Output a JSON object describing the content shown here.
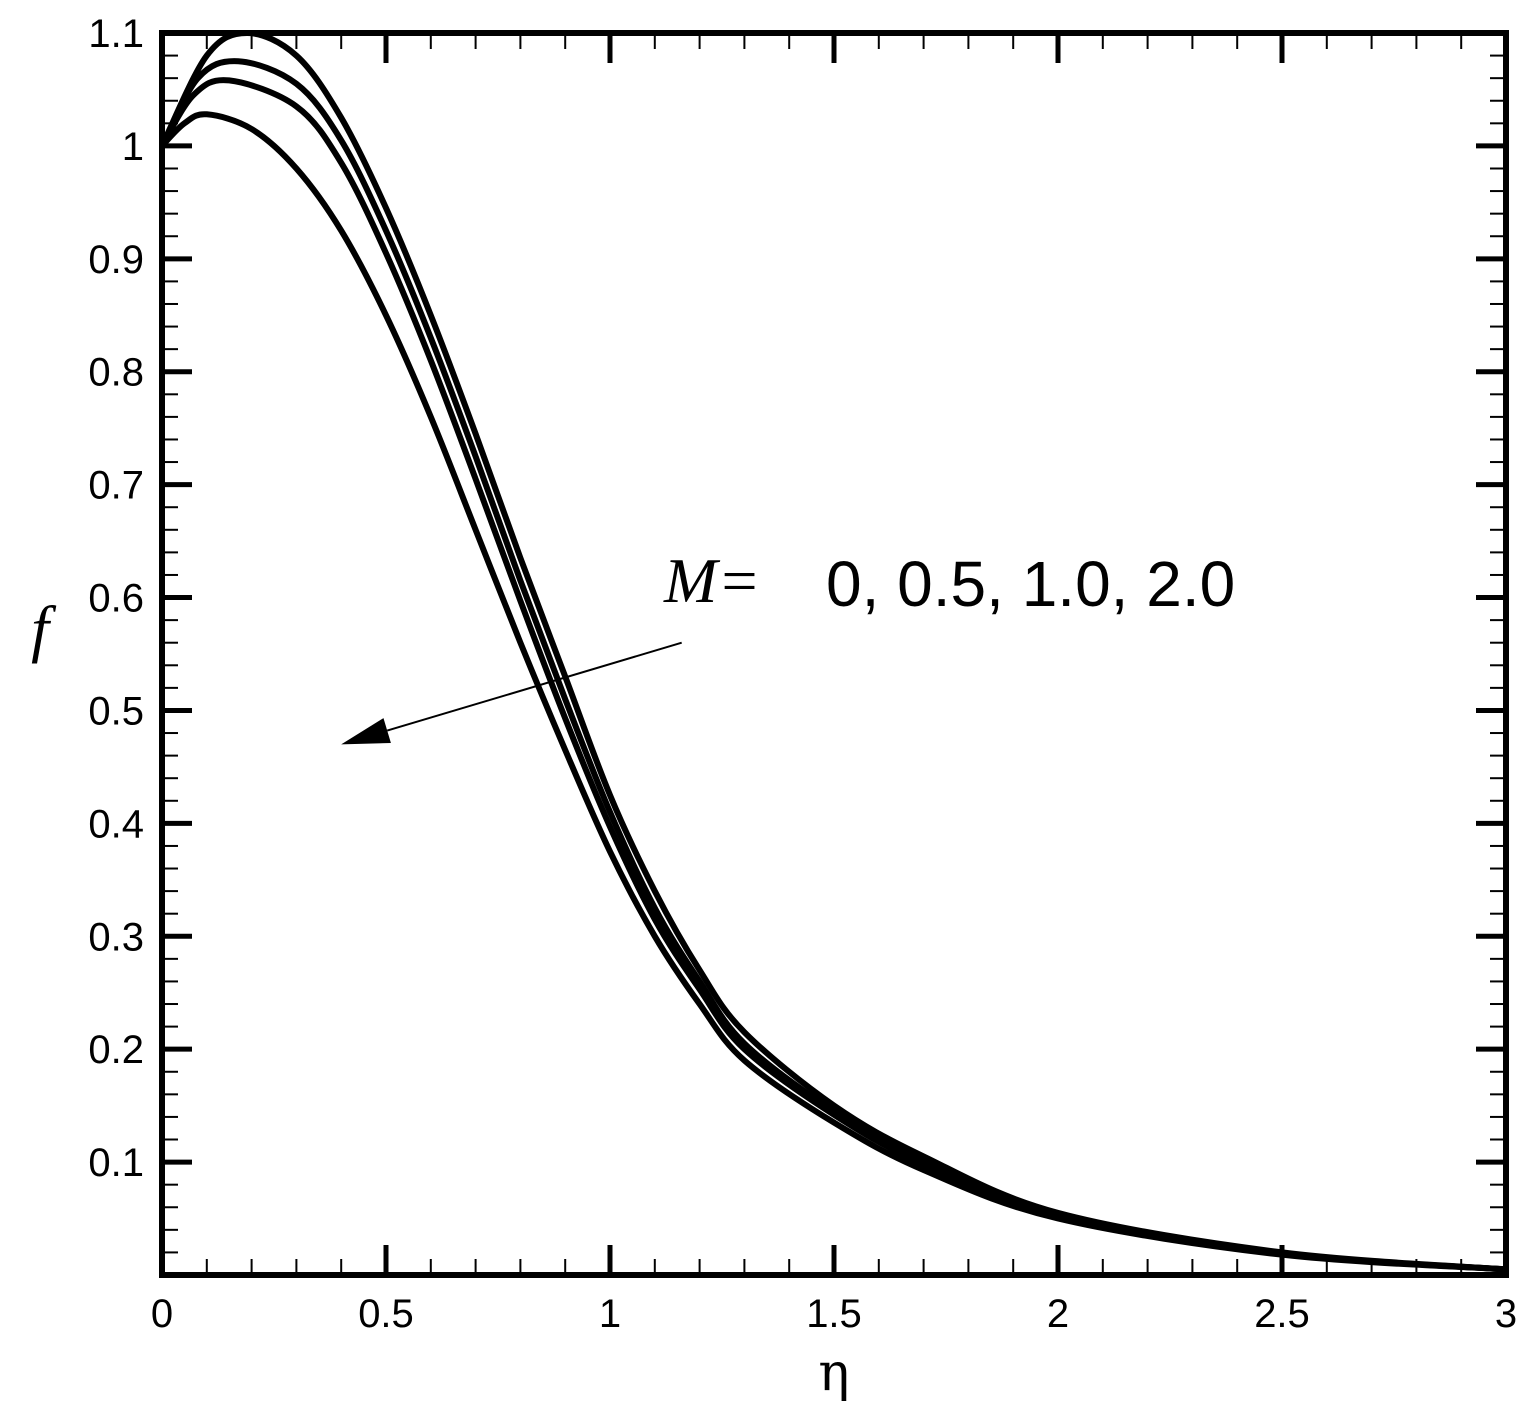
{
  "chart_data": {
    "type": "line",
    "title": "",
    "xlabel": "η",
    "ylabel": "f",
    "xlim": [
      0,
      3
    ],
    "ylim": [
      0,
      1.1
    ],
    "grid": false,
    "x_ticks": [
      {
        "value": 0,
        "label": "0"
      },
      {
        "value": 0.5,
        "label": "0.5"
      },
      {
        "value": 1,
        "label": "1"
      },
      {
        "value": 1.5,
        "label": "1.5"
      },
      {
        "value": 2,
        "label": "2"
      },
      {
        "value": 2.5,
        "label": "2.5"
      },
      {
        "value": 3,
        "label": "3"
      }
    ],
    "y_ticks": [
      {
        "value": 0.1,
        "label": "0.1"
      },
      {
        "value": 0.2,
        "label": "0.2"
      },
      {
        "value": 0.3,
        "label": "0.3"
      },
      {
        "value": 0.4,
        "label": "0.4"
      },
      {
        "value": 0.5,
        "label": "0.5"
      },
      {
        "value": 0.6,
        "label": "0.6"
      },
      {
        "value": 0.7,
        "label": "0.7"
      },
      {
        "value": 0.8,
        "label": "0.8"
      },
      {
        "value": 0.9,
        "label": "0.9"
      },
      {
        "value": 1,
        "label": "1"
      },
      {
        "value": 1.1,
        "label": "1.1"
      }
    ],
    "series": [
      {
        "values": [
          [
            0,
            1.0
          ],
          [
            0.1,
            1.08
          ],
          [
            0.19,
            1.1
          ],
          [
            0.3,
            1.08
          ],
          [
            0.4,
            1.025
          ],
          [
            0.5,
            0.945
          ],
          [
            0.6,
            0.85
          ],
          [
            0.7,
            0.745
          ],
          [
            0.8,
            0.635
          ],
          [
            0.9,
            0.53
          ],
          [
            1.0,
            0.425
          ],
          [
            1.1,
            0.34
          ],
          [
            1.2,
            0.27
          ],
          [
            1.3,
            0.215
          ],
          [
            1.5,
            0.15
          ],
          [
            1.7,
            0.105
          ],
          [
            2.0,
            0.055
          ],
          [
            2.5,
            0.02
          ],
          [
            3.0,
            0.005
          ]
        ]
      },
      {
        "values": [
          [
            0,
            1.0
          ],
          [
            0.08,
            1.06
          ],
          [
            0.17,
            1.075
          ],
          [
            0.3,
            1.055
          ],
          [
            0.4,
            1.005
          ],
          [
            0.5,
            0.925
          ],
          [
            0.6,
            0.83
          ],
          [
            0.7,
            0.725
          ],
          [
            0.8,
            0.615
          ],
          [
            0.9,
            0.51
          ],
          [
            1.0,
            0.41
          ],
          [
            1.1,
            0.325
          ],
          [
            1.2,
            0.26
          ],
          [
            1.3,
            0.205
          ],
          [
            1.5,
            0.145
          ],
          [
            1.7,
            0.1
          ],
          [
            2.0,
            0.053
          ],
          [
            2.5,
            0.019
          ],
          [
            3.0,
            0.005
          ]
        ]
      },
      {
        "values": [
          [
            0,
            1.0
          ],
          [
            0.07,
            1.045
          ],
          [
            0.15,
            1.058
          ],
          [
            0.3,
            1.035
          ],
          [
            0.4,
            0.985
          ],
          [
            0.5,
            0.905
          ],
          [
            0.6,
            0.81
          ],
          [
            0.7,
            0.705
          ],
          [
            0.8,
            0.597
          ],
          [
            0.9,
            0.493
          ],
          [
            1.0,
            0.397
          ],
          [
            1.1,
            0.315
          ],
          [
            1.2,
            0.253
          ],
          [
            1.3,
            0.2
          ],
          [
            1.5,
            0.142
          ],
          [
            1.7,
            0.098
          ],
          [
            2.0,
            0.052
          ],
          [
            2.5,
            0.019
          ],
          [
            3.0,
            0.005
          ]
        ]
      },
      {
        "values": [
          [
            0,
            1.0
          ],
          [
            0.05,
            1.02
          ],
          [
            0.1,
            1.028
          ],
          [
            0.2,
            1.015
          ],
          [
            0.3,
            0.98
          ],
          [
            0.4,
            0.925
          ],
          [
            0.5,
            0.85
          ],
          [
            0.6,
            0.76
          ],
          [
            0.7,
            0.66
          ],
          [
            0.8,
            0.56
          ],
          [
            0.9,
            0.465
          ],
          [
            1.0,
            0.375
          ],
          [
            1.1,
            0.3
          ],
          [
            1.2,
            0.24
          ],
          [
            1.3,
            0.19
          ],
          [
            1.5,
            0.135
          ],
          [
            1.7,
            0.093
          ],
          [
            2.0,
            0.05
          ],
          [
            2.5,
            0.018
          ],
          [
            3.0,
            0.005
          ]
        ]
      }
    ],
    "annotation": {
      "var_label": "M=",
      "values_text": "0, 0.5, 1.0, 2.0",
      "arrow_from": [
        1.16,
        0.56
      ],
      "arrow_to": [
        0.4,
        0.47
      ]
    }
  }
}
